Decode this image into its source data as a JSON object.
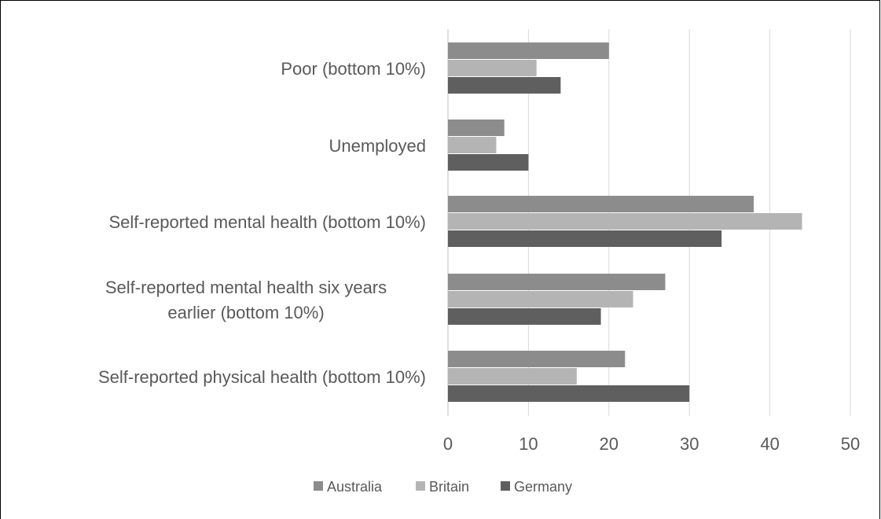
{
  "chart_data": {
    "type": "bar",
    "orientation": "horizontal",
    "categories": [
      "Poor (bottom 10%)",
      "Unemployed",
      "Self-reported mental health (bottom 10%)",
      "Self-reported mental health six years earlier (bottom 10%)",
      "Self-reported physical health (bottom 10%)"
    ],
    "category_label_lines": [
      [
        "Poor (bottom 10%)"
      ],
      [
        "Unemployed"
      ],
      [
        "Self-reported mental health (bottom 10%)"
      ],
      [
        "Self-reported mental health six years",
        "earlier (bottom 10%)"
      ],
      [
        "Self-reported physical health (bottom 10%)"
      ]
    ],
    "series": [
      {
        "name": "Australia",
        "color": "#8c8c8c",
        "values": [
          20,
          7,
          38,
          27,
          22
        ]
      },
      {
        "name": "Britain",
        "color": "#b4b4b4",
        "values": [
          11,
          6,
          44,
          23,
          16
        ]
      },
      {
        "name": "Germany",
        "color": "#5f5f5f",
        "values": [
          14,
          10,
          34,
          19,
          30
        ]
      }
    ],
    "xlim": [
      0,
      50
    ],
    "xticks": [
      0,
      10,
      20,
      30,
      40,
      50
    ],
    "grid": true,
    "legend_position": "bottom",
    "title": "",
    "xlabel": "",
    "ylabel": ""
  }
}
